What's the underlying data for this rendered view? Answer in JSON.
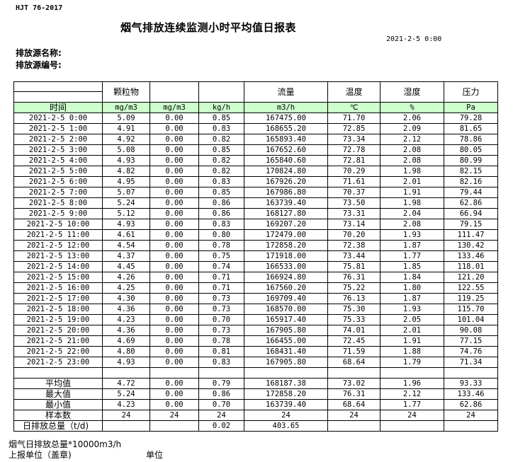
{
  "standard": "HJT  76-2017",
  "title": "烟气排放连续监测小时平均值日报表",
  "report_date": "2021-2-5 0:00",
  "source_name_label": "排放源名称:",
  "source_no_label": "排放源编号:",
  "header": {
    "row1": [
      "",
      "颗粒物",
      "",
      "",
      "流量",
      "温度",
      "湿度",
      "压力"
    ],
    "row2": [
      "时间",
      "mg/m3",
      "mg/m3",
      "kg/h",
      "m3/h",
      "℃",
      "%",
      "Pa"
    ]
  },
  "rows": [
    [
      "2021-2-5 0:00",
      "5.09",
      "0.00",
      "0.85",
      "167475.00",
      "71.70",
      "2.06",
      "79.28"
    ],
    [
      "2021-2-5 1:00",
      "4.91",
      "0.00",
      "0.83",
      "168655.20",
      "72.85",
      "2.09",
      "81.65"
    ],
    [
      "2021-2-5 2:00",
      "4.92",
      "0.00",
      "0.82",
      "165893.40",
      "73.34",
      "2.12",
      "78.86"
    ],
    [
      "2021-2-5 3:00",
      "5.08",
      "0.00",
      "0.85",
      "167652.60",
      "72.78",
      "2.08",
      "80.05"
    ],
    [
      "2021-2-5 4:00",
      "4.93",
      "0.00",
      "0.82",
      "165840.60",
      "72.81",
      "2.08",
      "80.99"
    ],
    [
      "2021-2-5 5:00",
      "4.82",
      "0.00",
      "0.82",
      "170824.80",
      "70.29",
      "1.98",
      "82.15"
    ],
    [
      "2021-2-5 6:00",
      "4.95",
      "0.00",
      "0.83",
      "167926.20",
      "71.61",
      "2.01",
      "82.16"
    ],
    [
      "2021-2-5 7:00",
      "5.07",
      "0.00",
      "0.85",
      "167986.80",
      "70.37",
      "1.91",
      "79.44"
    ],
    [
      "2021-2-5 8:00",
      "5.24",
      "0.00",
      "0.86",
      "163739.40",
      "73.50",
      "1.98",
      "62.86"
    ],
    [
      "2021-2-5 9:00",
      "5.12",
      "0.00",
      "0.86",
      "168127.80",
      "73.31",
      "2.04",
      "66.94"
    ],
    [
      "2021-2-5 10:00",
      "4.93",
      "0.00",
      "0.83",
      "169207.20",
      "73.14",
      "2.08",
      "79.15"
    ],
    [
      "2021-2-5 11:00",
      "4.61",
      "0.00",
      "0.80",
      "172479.00",
      "70.20",
      "1.93",
      "111.47"
    ],
    [
      "2021-2-5 12:00",
      "4.54",
      "0.00",
      "0.78",
      "172858.20",
      "72.38",
      "1.87",
      "130.42"
    ],
    [
      "2021-2-5 13:00",
      "4.37",
      "0.00",
      "0.75",
      "171918.00",
      "73.44",
      "1.77",
      "133.46"
    ],
    [
      "2021-2-5 14:00",
      "4.45",
      "0.00",
      "0.74",
      "166533.00",
      "75.81",
      "1.85",
      "118.01"
    ],
    [
      "2021-2-5 15:00",
      "4.26",
      "0.00",
      "0.71",
      "166924.80",
      "76.31",
      "1.84",
      "121.20"
    ],
    [
      "2021-2-5 16:00",
      "4.25",
      "0.00",
      "0.71",
      "167560.20",
      "75.22",
      "1.80",
      "122.55"
    ],
    [
      "2021-2-5 17:00",
      "4.30",
      "0.00",
      "0.73",
      "169709.40",
      "76.13",
      "1.87",
      "119.25"
    ],
    [
      "2021-2-5 18:00",
      "4.36",
      "0.00",
      "0.73",
      "168570.00",
      "75.30",
      "1.93",
      "115.70"
    ],
    [
      "2021-2-5 19:00",
      "4.23",
      "0.00",
      "0.70",
      "165917.40",
      "75.33",
      "2.05",
      "101.04"
    ],
    [
      "2021-2-5 20:00",
      "4.36",
      "0.00",
      "0.73",
      "167905.80",
      "74.01",
      "2.01",
      "90.08"
    ],
    [
      "2021-2-5 21:00",
      "4.69",
      "0.00",
      "0.78",
      "166455.00",
      "72.45",
      "1.91",
      "77.15"
    ],
    [
      "2021-2-5 22:00",
      "4.80",
      "0.00",
      "0.81",
      "168431.40",
      "71.59",
      "1.88",
      "74.76"
    ],
    [
      "2021-2-5 23:00",
      "4.93",
      "0.00",
      "0.83",
      "167905.80",
      "68.64",
      "1.79",
      "71.34"
    ]
  ],
  "summary": [
    [
      "平均值",
      "4.72",
      "0.00",
      "0.79",
      "168187.38",
      "73.02",
      "1.96",
      "93.33"
    ],
    [
      "最大值",
      "5.24",
      "0.00",
      "0.86",
      "172858.20",
      "76.31",
      "2.12",
      "133.46"
    ],
    [
      "最小值",
      "4.23",
      "0.00",
      "0.70",
      "163739.40",
      "68.64",
      "1.77",
      "62.86"
    ],
    [
      "样本数",
      "24",
      "24",
      "24",
      "24",
      "24",
      "24",
      "24"
    ],
    [
      "日排放总量（t/d)",
      "",
      "",
      "0.02",
      "403.65",
      "",
      "",
      ""
    ]
  ],
  "footer": {
    "flue_total": "烟气日排放总量*10000m3/h",
    "reporting_unit": "上报单位（盖章)",
    "unit": "单位"
  },
  "colors": {
    "unit_row_bg": "#ccffcc"
  }
}
